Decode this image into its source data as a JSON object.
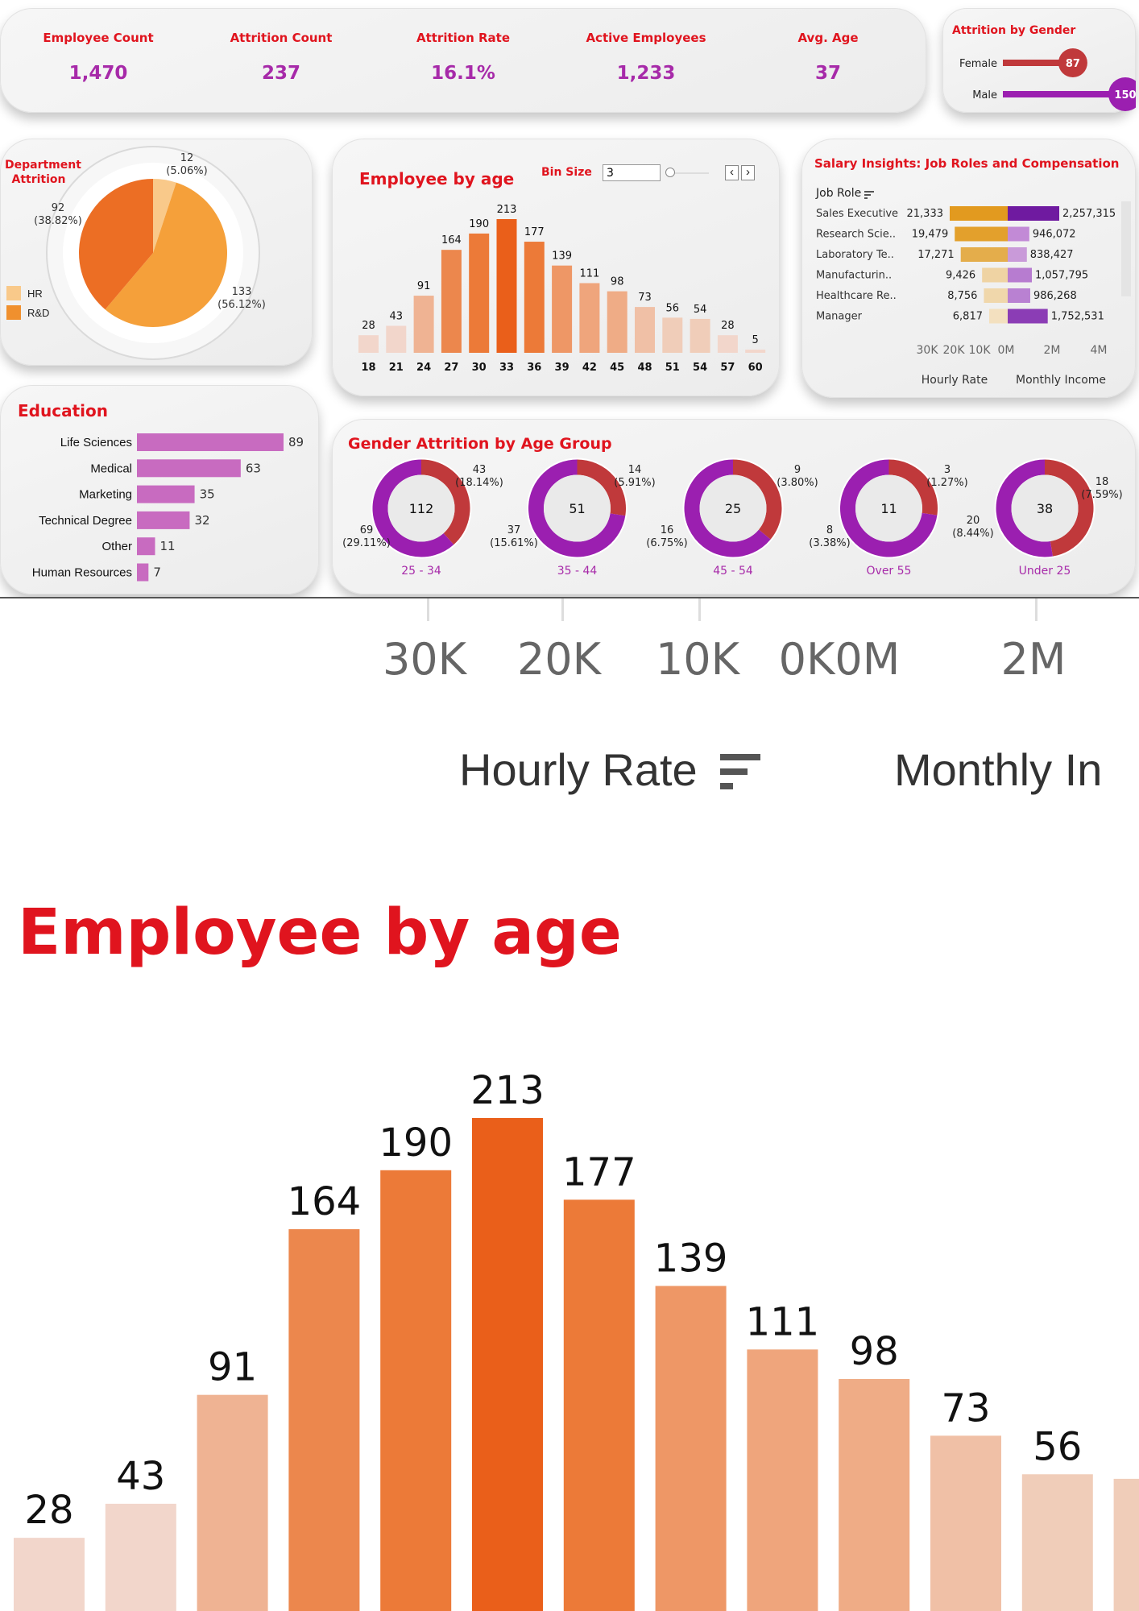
{
  "kpis": [
    {
      "label": "Employee Count",
      "value": "1,470"
    },
    {
      "label": "Attrition Count",
      "value": "237"
    },
    {
      "label": "Attrition Rate",
      "value": "16.1%"
    },
    {
      "label": "Active Employees",
      "value": "1,233"
    },
    {
      "label": "Avg. Age",
      "value": "37"
    }
  ],
  "gender": {
    "title": "Attrition by Gender",
    "items": [
      {
        "label": "Female",
        "value": 87,
        "value_text": "87",
        "color": "#c0393b"
      },
      {
        "label": "Male",
        "value": 150,
        "value_text": "150",
        "color": "#9b1fb0"
      }
    ]
  },
  "department": {
    "title_line1": "Department",
    "title_line2": "Attrition",
    "slices": [
      {
        "name": "R&D",
        "value": 133,
        "value_text": "133",
        "pct_text": "(56.12%)",
        "color": "#f5a03a"
      },
      {
        "name": "",
        "value": 92,
        "value_text": "92",
        "pct_text": "(38.82%)",
        "color": "#ec6e24"
      },
      {
        "name": "HR",
        "value": 12,
        "value_text": "12",
        "pct_text": "(5.06%)",
        "color": "#f9c98a"
      }
    ],
    "legend": [
      {
        "label": "HR",
        "color": "#f9c98a"
      },
      {
        "label": "R&D",
        "color": "#f0902e"
      }
    ]
  },
  "age": {
    "title": "Employee by age",
    "bin_label": "Bin Size",
    "bin_value": "3",
    "prev_glyph": "‹",
    "next_glyph": "›"
  },
  "salary": {
    "title": "Salary Insights: Job Roles and Compensation",
    "job_role_label": "Job Role",
    "rows": [
      {
        "role": "Sales Executive",
        "hourly": 21333,
        "hourly_text": "21,333",
        "monthly": 2257315,
        "monthly_text": "2,257,315",
        "hcolor": "#e29a1f",
        "mcolor": "#6f1aa0"
      },
      {
        "role": "Research Scie..",
        "hourly": 19479,
        "hourly_text": "19,479",
        "monthly": 946072,
        "monthly_text": "946,072",
        "hcolor": "#e3a02c",
        "mcolor": "#c28ad6"
      },
      {
        "role": "Laboratory Te..",
        "hourly": 17271,
        "hourly_text": "17,271",
        "monthly": 838427,
        "monthly_text": "838,427",
        "hcolor": "#e4ad4b",
        "mcolor": "#c99ad9"
      },
      {
        "role": "Manufacturin..",
        "hourly": 9426,
        "hourly_text": "9,426",
        "monthly": 1057795,
        "monthly_text": "1,057,795",
        "hcolor": "#efd3a3",
        "mcolor": "#b77cd0"
      },
      {
        "role": "Healthcare Re..",
        "hourly": 8756,
        "hourly_text": "8,756",
        "monthly": 986268,
        "monthly_text": "986,268",
        "hcolor": "#f0d7ab",
        "mcolor": "#b981d2"
      },
      {
        "role": "Manager",
        "hourly": 6817,
        "hourly_text": "6,817",
        "monthly": 1752531,
        "monthly_text": "1,752,531",
        "hcolor": "#f3e0bf",
        "mcolor": "#8b3db5"
      }
    ],
    "hourly_ticks": [
      "30K",
      "20K",
      "10K",
      "0M"
    ],
    "monthly_ticks": [
      "2M",
      "4M"
    ],
    "hourly_label": "Hourly Rate",
    "monthly_label": "Monthly Income"
  },
  "education": {
    "title": "Education",
    "bar_color": "#c86bc0"
  },
  "gender_age": {
    "title": "Gender Attrition by Age Group",
    "female_color": "#c0393b",
    "male_color": "#9b1fb0",
    "groups": [
      {
        "label": "25 - 34",
        "total": "112",
        "female": 43,
        "female_text": "43",
        "female_pct": "(18.14%)",
        "male": 69,
        "male_text": "69",
        "male_pct": "(29.11%)"
      },
      {
        "label": "35 - 44",
        "total": "51",
        "female": 14,
        "female_text": "14",
        "female_pct": "(5.91%)",
        "male": 37,
        "male_text": "37",
        "male_pct": "(15.61%)"
      },
      {
        "label": "45 - 54",
        "total": "25",
        "female": 9,
        "female_text": "9",
        "female_pct": "(3.80%)",
        "male": 16,
        "male_text": "16",
        "male_pct": "(6.75%)"
      },
      {
        "label": "Over 55",
        "total": "11",
        "female": 3,
        "female_text": "3",
        "female_pct": "(1.27%)",
        "male": 8,
        "male_text": "8",
        "male_pct": "(3.38%)"
      },
      {
        "label": "Under 25",
        "total": "38",
        "female": 18,
        "female_text": "18",
        "female_pct": "(7.59%)",
        "male": 20,
        "male_text": "20",
        "male_pct": "(8.44%)"
      }
    ]
  },
  "zoom": {
    "axis_ticks": [
      "30K",
      "20K",
      "10K",
      "0K0M",
      "2M"
    ],
    "hourly_label": "Hourly Rate",
    "monthly_label": "Monthly In",
    "age_title": "Employee by age",
    "bar_values": [
      "28",
      "43",
      "91",
      "164",
      "190",
      "213",
      "177",
      "139",
      "111",
      "98",
      "73",
      "56"
    ]
  },
  "chart_data": [
    {
      "type": "bar",
      "title": "Employee by age",
      "categories": [
        "18",
        "21",
        "24",
        "27",
        "30",
        "33",
        "36",
        "39",
        "42",
        "45",
        "48",
        "51",
        "54",
        "57",
        "60"
      ],
      "values": [
        28,
        43,
        91,
        164,
        190,
        213,
        177,
        139,
        111,
        98,
        73,
        56,
        54,
        28,
        5
      ],
      "colors": [
        "#f2d6cb",
        "#f2d6cb",
        "#efb393",
        "#ec874d",
        "#ec7a38",
        "#ea5f1a",
        "#ec7a38",
        "#ee9766",
        "#efa57c",
        "#efac86",
        "#f0c0a6",
        "#f0cdb9",
        "#f0cdb9",
        "#f2d6cb",
        "#f2d6cb"
      ],
      "ylim": [
        0,
        213
      ]
    },
    {
      "type": "bar",
      "title": "Education",
      "categories": [
        "Life Sciences",
        "Medical",
        "Marketing",
        "Technical Degree",
        "Other",
        "Human Resources"
      ],
      "values": [
        89,
        63,
        35,
        32,
        11,
        7
      ]
    },
    {
      "type": "pie",
      "title": "Department Attrition",
      "categories": [
        "R&D",
        "",
        "HR"
      ],
      "values": [
        133,
        92,
        12
      ]
    },
    {
      "type": "bar",
      "title": "Attrition by Gender",
      "categories": [
        "Female",
        "Male"
      ],
      "values": [
        87,
        150
      ]
    }
  ]
}
